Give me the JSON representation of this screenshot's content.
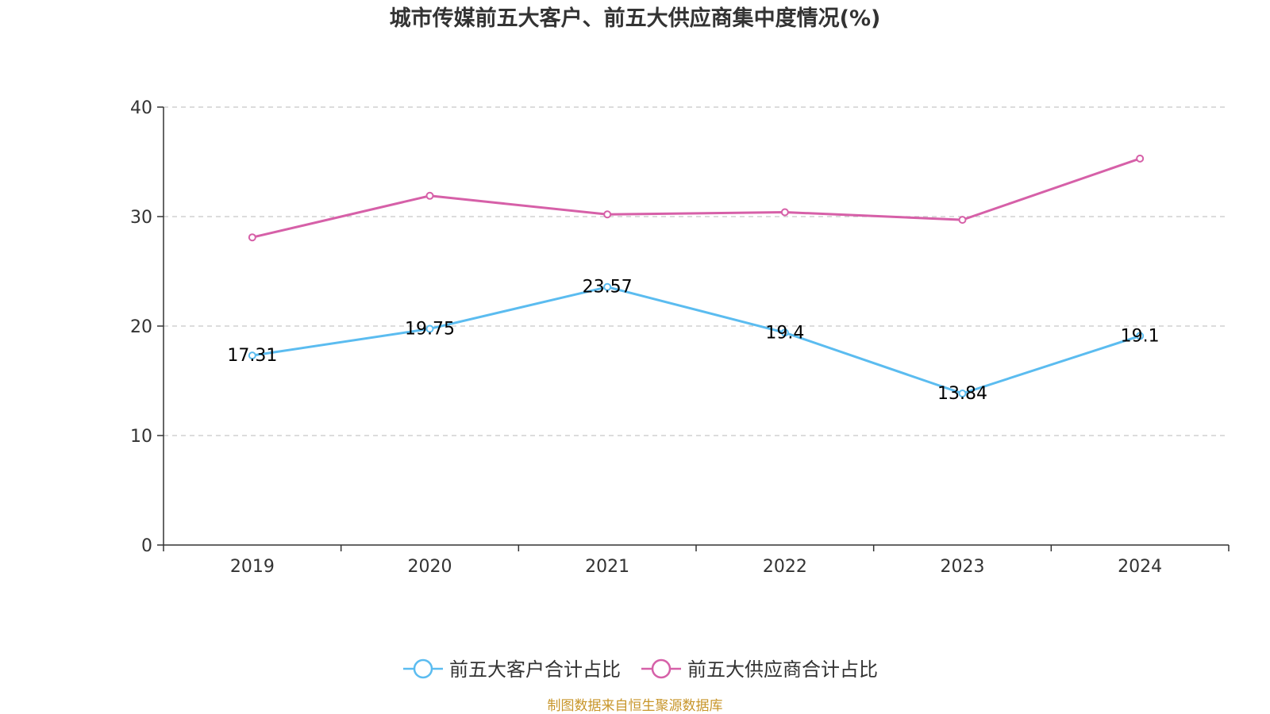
{
  "chart_data": {
    "type": "line",
    "title": "城市传媒前五大客户、前五大供应商集中度情况(%)",
    "categories": [
      "2019",
      "2020",
      "2021",
      "2022",
      "2023",
      "2024"
    ],
    "ylim": [
      0,
      40
    ],
    "yticks": [
      0,
      10,
      20,
      30,
      40
    ],
    "grid": true,
    "legend_position": "bottom",
    "series": [
      {
        "name": "前五大客户合计占比",
        "color": "#5bbcf0",
        "values": [
          17.31,
          19.75,
          23.57,
          19.4,
          13.84,
          19.1
        ],
        "labels": [
          "17.31",
          "19.75",
          "23.57",
          "19.4",
          "13.84",
          "19.1"
        ],
        "show_labels": true
      },
      {
        "name": "前五大供应商合计占比",
        "color": "#d660a8",
        "values": [
          28.1,
          31.9,
          30.2,
          30.4,
          29.7,
          35.3
        ],
        "show_labels": false
      }
    ]
  },
  "source": "制图数据来自恒生聚源数据库"
}
